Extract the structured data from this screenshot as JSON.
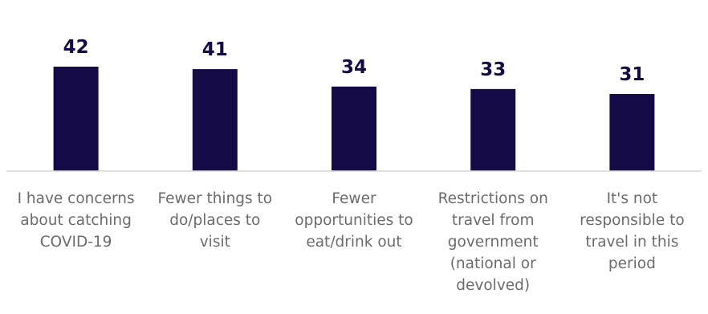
{
  "chart_data": {
    "type": "bar",
    "categories": [
      "I have concerns about catching COVID-19",
      "Fewer things to do/places to visit",
      "Fewer opportunities to eat/drink out",
      "Restrictions on travel from government (national or devolved)",
      "It's not responsible to travel in this period"
    ],
    "category_lines": [
      [
        "I have concerns",
        "about catching",
        "COVID-19"
      ],
      [
        "Fewer things to",
        "do/places to",
        "visit"
      ],
      [
        "Fewer",
        "opportunities to",
        "eat/drink out"
      ],
      [
        "Restrictions on",
        "travel from",
        "government",
        "(national or",
        "devolved)"
      ],
      [
        "It's not",
        "responsible to",
        "travel in this",
        "period"
      ]
    ],
    "values": [
      42,
      41,
      34,
      33,
      31
    ],
    "data_labels": [
      "42",
      "41",
      "34",
      "33",
      "31"
    ],
    "title": "",
    "xlabel": "",
    "ylabel": "",
    "ylim": [
      0,
      42
    ],
    "grid": false,
    "legend": "none",
    "bar_color": "#140a45",
    "label_color": "#6b6b6b",
    "axis_color": "#d9d9d9"
  }
}
